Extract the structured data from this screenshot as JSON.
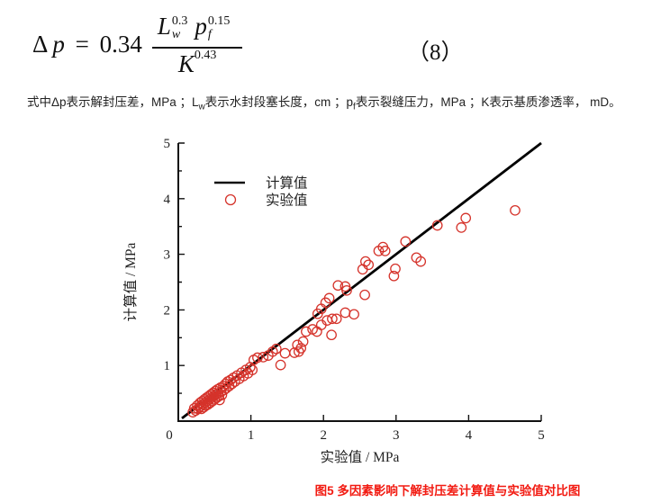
{
  "equation": {
    "lhs_delta": "Δ",
    "lhs_var": "p",
    "equals": "=",
    "coefficient": "0.34",
    "numerator": {
      "term1": {
        "base": "L",
        "sub": "w",
        "sup": "0.3"
      },
      "term2": {
        "base": "p",
        "sub": "f",
        "sup": "0.15"
      }
    },
    "denominator": {
      "base": "K",
      "sup": "0.43"
    },
    "number": "（8）"
  },
  "description": {
    "segments": [
      {
        "text": "式中Δp表示解封压差，MPa ；L"
      },
      {
        "sub": "w"
      },
      {
        "text": "表示水封段塞长度，cm ；p"
      },
      {
        "sub": "f"
      },
      {
        "text": "表示裂缝压力，MPa ；K表示基质渗透率， mD。"
      }
    ]
  },
  "chart_data": {
    "type": "scatter",
    "title": "",
    "xlabel": "实验值 / MPa",
    "ylabel": "计算值 / MPa",
    "xlim": [
      0,
      5
    ],
    "ylim": [
      0,
      5
    ],
    "x_ticks": [
      0,
      1,
      2,
      3,
      4,
      5
    ],
    "y_ticks": [
      1,
      2,
      3,
      4,
      5
    ],
    "y_minor_step": 0.5,
    "grid": false,
    "axis_color": "#111111",
    "legend": {
      "position": "upper-left-inside",
      "entries": [
        {
          "marker": "line",
          "label": "计算值",
          "color": "#111111"
        },
        {
          "marker": "circle",
          "label": "实验值",
          "color": "#d5332b"
        }
      ]
    },
    "series": [
      {
        "name": "计算值",
        "type": "line",
        "color": "#000000",
        "points": [
          [
            0.05,
            0.05
          ],
          [
            5.0,
            5.0
          ]
        ]
      },
      {
        "name": "实验值",
        "type": "scatter",
        "marker": "open-circle",
        "color": "#d5332b",
        "points": [
          [
            0.2,
            0.16
          ],
          [
            0.22,
            0.23
          ],
          [
            0.24,
            0.19
          ],
          [
            0.26,
            0.28
          ],
          [
            0.27,
            0.22
          ],
          [
            0.29,
            0.25
          ],
          [
            0.3,
            0.33
          ],
          [
            0.31,
            0.27
          ],
          [
            0.32,
            0.22
          ],
          [
            0.33,
            0.36
          ],
          [
            0.34,
            0.3
          ],
          [
            0.35,
            0.25
          ],
          [
            0.36,
            0.39
          ],
          [
            0.37,
            0.33
          ],
          [
            0.38,
            0.28
          ],
          [
            0.39,
            0.42
          ],
          [
            0.4,
            0.36
          ],
          [
            0.41,
            0.3
          ],
          [
            0.42,
            0.45
          ],
          [
            0.43,
            0.39
          ],
          [
            0.44,
            0.33
          ],
          [
            0.45,
            0.48
          ],
          [
            0.46,
            0.42
          ],
          [
            0.47,
            0.36
          ],
          [
            0.48,
            0.51
          ],
          [
            0.49,
            0.45
          ],
          [
            0.5,
            0.39
          ],
          [
            0.51,
            0.54
          ],
          [
            0.52,
            0.48
          ],
          [
            0.53,
            0.42
          ],
          [
            0.54,
            0.57
          ],
          [
            0.55,
            0.5
          ],
          [
            0.56,
            0.45
          ],
          [
            0.57,
            0.38
          ],
          [
            0.58,
            0.6
          ],
          [
            0.59,
            0.53
          ],
          [
            0.6,
            0.47
          ],
          [
            0.62,
            0.63
          ],
          [
            0.63,
            0.56
          ],
          [
            0.65,
            0.67
          ],
          [
            0.66,
            0.59
          ],
          [
            0.68,
            0.71
          ],
          [
            0.7,
            0.63
          ],
          [
            0.72,
            0.74
          ],
          [
            0.74,
            0.67
          ],
          [
            0.76,
            0.78
          ],
          [
            0.78,
            0.71
          ],
          [
            0.81,
            0.82
          ],
          [
            0.84,
            0.76
          ],
          [
            0.87,
            0.87
          ],
          [
            0.9,
            0.81
          ],
          [
            0.93,
            0.92
          ],
          [
            0.96,
            0.86
          ],
          [
            0.99,
            0.97
          ],
          [
            1.02,
            0.92
          ],
          [
            1.04,
            1.1
          ],
          [
            1.09,
            1.14
          ],
          [
            1.17,
            1.15
          ],
          [
            1.24,
            1.18
          ],
          [
            1.3,
            1.25
          ],
          [
            1.35,
            1.3
          ],
          [
            1.41,
            1.01
          ],
          [
            1.47,
            1.22
          ],
          [
            1.6,
            1.23
          ],
          [
            1.64,
            1.37
          ],
          [
            1.66,
            1.25
          ],
          [
            1.69,
            1.31
          ],
          [
            1.72,
            1.43
          ],
          [
            1.76,
            1.61
          ],
          [
            1.85,
            1.65
          ],
          [
            1.91,
            1.61
          ],
          [
            1.92,
            1.93
          ],
          [
            1.97,
            1.73
          ],
          [
            1.97,
            2.02
          ],
          [
            2.03,
            2.13
          ],
          [
            2.05,
            1.81
          ],
          [
            2.08,
            2.21
          ],
          [
            2.11,
            1.55
          ],
          [
            2.12,
            1.84
          ],
          [
            2.18,
            1.84
          ],
          [
            2.2,
            2.44
          ],
          [
            2.3,
            1.95
          ],
          [
            2.3,
            2.42
          ],
          [
            2.32,
            2.35
          ],
          [
            2.42,
            1.92
          ],
          [
            2.54,
            2.73
          ],
          [
            2.57,
            2.27
          ],
          [
            2.58,
            2.87
          ],
          [
            2.62,
            2.81
          ],
          [
            2.76,
            3.06
          ],
          [
            2.82,
            3.13
          ],
          [
            2.85,
            3.06
          ],
          [
            2.97,
            2.61
          ],
          [
            2.99,
            2.74
          ],
          [
            3.13,
            3.23
          ],
          [
            3.28,
            2.94
          ],
          [
            3.34,
            2.87
          ],
          [
            3.57,
            3.52
          ],
          [
            3.9,
            3.48
          ],
          [
            3.96,
            3.65
          ],
          [
            4.64,
            3.79
          ]
        ]
      }
    ]
  },
  "caption": {
    "text": "图5 多因素影响下解封压差计算值与实验值对比图",
    "color": "#f21b12"
  }
}
